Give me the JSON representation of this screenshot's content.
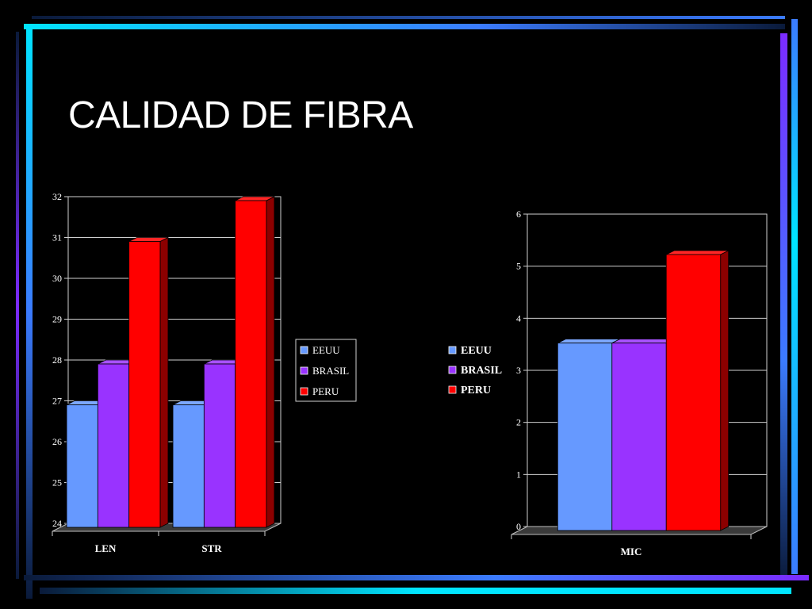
{
  "slide": {
    "title": "CALIDAD DE FIBRA",
    "frame_colors": {
      "cyan": "#00e5ff",
      "blue": "#3b7bff",
      "purple": "#7b2bff",
      "dark": "#0a1a3a"
    }
  },
  "chart_data": [
    {
      "type": "bar",
      "style": "3d",
      "categories": [
        "LEN",
        "STR"
      ],
      "series": [
        {
          "name": "EEUU",
          "values": [
            27,
            27
          ],
          "color": "#6699ff"
        },
        {
          "name": "BRASIL",
          "values": [
            28,
            28
          ],
          "color": "#9933ff"
        },
        {
          "name": "PERU",
          "values": [
            31,
            32
          ],
          "color": "#ff0000"
        }
      ],
      "ylim": [
        24,
        32
      ],
      "yticks": [
        "24",
        "25",
        "26",
        "27",
        "28",
        "29",
        "30",
        "31",
        "32"
      ],
      "grid": true,
      "legend_position": "right"
    },
    {
      "type": "bar",
      "style": "3d",
      "categories": [
        "MIC"
      ],
      "series": [
        {
          "name": "EEUU",
          "values": [
            3.6
          ],
          "color": "#6699ff"
        },
        {
          "name": "BRASIL",
          "values": [
            3.6
          ],
          "color": "#9933ff"
        },
        {
          "name": "PERU",
          "values": [
            5.3
          ],
          "color": "#ff0000"
        }
      ],
      "ylim": [
        0,
        6
      ],
      "yticks": [
        "0",
        "1",
        "2",
        "3",
        "4",
        "5",
        "6"
      ],
      "grid": true,
      "legend_position": "left"
    }
  ]
}
